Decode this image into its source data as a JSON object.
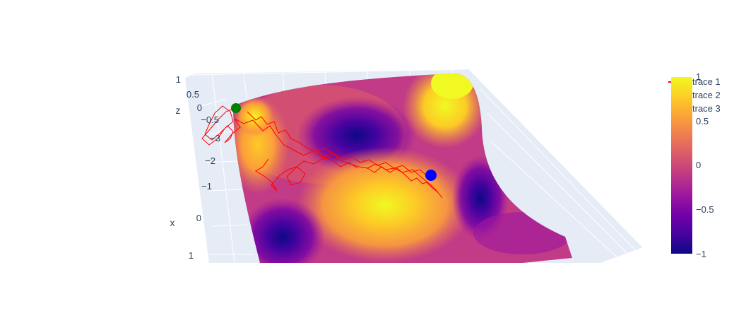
{
  "chart_data": {
    "type": "surface",
    "title": "",
    "axes": {
      "x_title": "x",
      "z_title": "z",
      "x_ticks": [
        "−3",
        "−2",
        "−1",
        "0",
        "1"
      ],
      "z_ticks": [
        "1",
        "0.5",
        "0",
        "−0.5"
      ]
    },
    "legend": {
      "placement": "top-right",
      "entries": [
        "trace 1",
        "trace 2",
        "trace 3"
      ]
    },
    "colorbar": {
      "ticks": [
        "1",
        "0.5",
        "0",
        "−0.5",
        "−1"
      ],
      "range": [
        -1,
        1
      ],
      "colorscale": [
        "#0d0887",
        "#46039f",
        "#7201a8",
        "#9c179e",
        "#bd3786",
        "#d8576b",
        "#ed7953",
        "#fb9f3a",
        "#fdca26",
        "#f0f921"
      ]
    },
    "series": [
      {
        "name": "trace 1",
        "kind": "line",
        "color": "#ff0000"
      },
      {
        "name": "trace 2",
        "kind": "marker",
        "color": "#0000ff"
      },
      {
        "name": "trace 3",
        "kind": "marker",
        "color": "#008000"
      }
    ],
    "grid": true
  }
}
